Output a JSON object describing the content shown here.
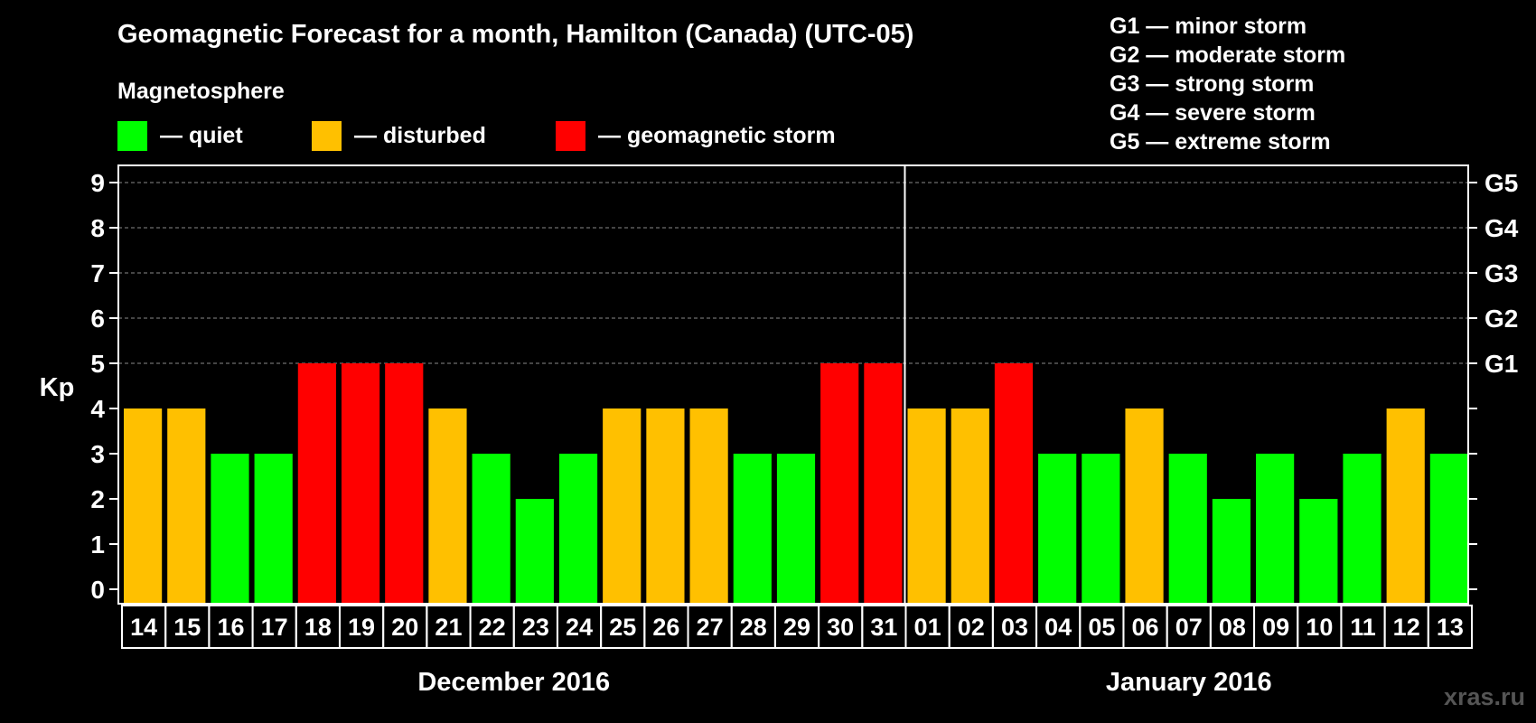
{
  "chart_data": {
    "type": "bar",
    "title": "Geomagnetic Forecast for a month, Hamilton (Canada) (UTC-05)",
    "legend_title": "Magnetosphere",
    "legend": [
      {
        "label": "— quiet",
        "color": "#00ff00"
      },
      {
        "label": "— disturbed",
        "color": "#ffc000"
      },
      {
        "label": "— geomagnetic storm",
        "color": "#ff0000"
      }
    ],
    "storm_scale": [
      "G1 — minor storm",
      "G2 — moderate storm",
      "G3 — strong storm",
      "G4 — severe storm",
      "G5 — extreme storm"
    ],
    "ylabel": "Kp",
    "ylim": [
      0,
      9
    ],
    "yticks": [
      "0",
      "1",
      "2",
      "3",
      "4",
      "5",
      "6",
      "7",
      "8",
      "9"
    ],
    "g_levels": [
      {
        "label": "G1",
        "kp": 5
      },
      {
        "label": "G2",
        "kp": 6
      },
      {
        "label": "G3",
        "kp": 7
      },
      {
        "label": "G4",
        "kp": 8
      },
      {
        "label": "G5",
        "kp": 9
      }
    ],
    "categories": [
      "14",
      "15",
      "16",
      "17",
      "18",
      "19",
      "20",
      "21",
      "22",
      "23",
      "24",
      "25",
      "26",
      "27",
      "28",
      "29",
      "30",
      "31",
      "01",
      "02",
      "03",
      "04",
      "05",
      "06",
      "07",
      "08",
      "09",
      "10",
      "11",
      "12",
      "13"
    ],
    "values": [
      4,
      4,
      3,
      3,
      5,
      5,
      5,
      4,
      3,
      2,
      3,
      4,
      4,
      4,
      3,
      3,
      5,
      5,
      4,
      4,
      5,
      3,
      3,
      4,
      3,
      2,
      3,
      2,
      3,
      4,
      3
    ],
    "months": [
      {
        "label": "December 2016",
        "start": 0,
        "count": 18
      },
      {
        "label": "January 2016",
        "start": 18,
        "count": 13
      }
    ],
    "colors": {
      "quiet": "#00ff00",
      "disturbed": "#ffc000",
      "storm": "#ff0000"
    },
    "grid": "dashed horizontal at each Kp level 5-9"
  },
  "watermark": "xras.ru"
}
